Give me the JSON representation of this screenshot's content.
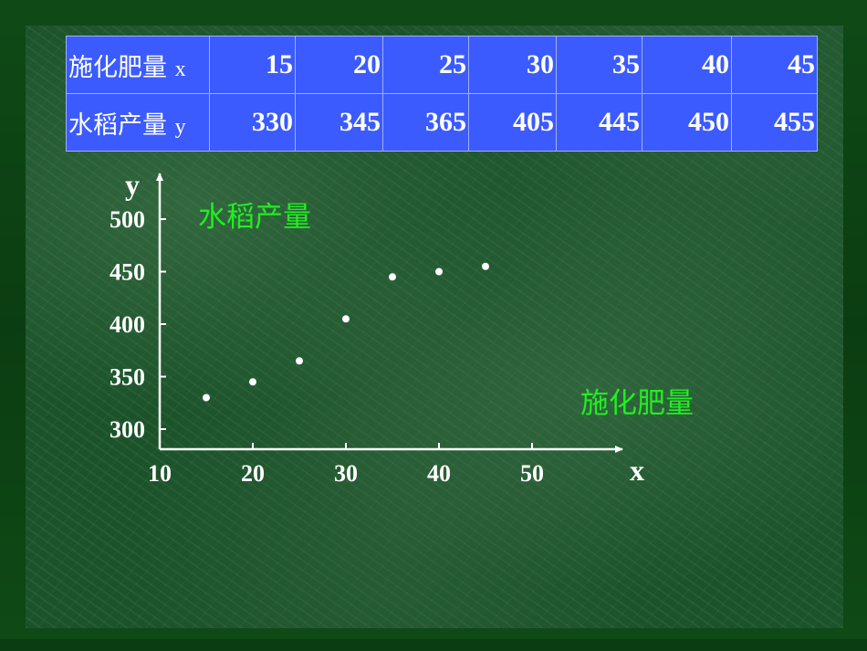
{
  "table": {
    "rows": [
      {
        "label": "施化肥量",
        "var": "x",
        "values": [
          "15",
          "20",
          "25",
          "30",
          "35",
          "40",
          "45"
        ]
      },
      {
        "label": "水稻产量",
        "var": "y",
        "values": [
          "330",
          "345",
          "365",
          "405",
          "445",
          "450",
          "455"
        ]
      }
    ]
  },
  "chart_data": {
    "type": "scatter",
    "xlabel": "x",
    "ylabel": "y",
    "annotations": [
      "水稻产量",
      "施化肥量"
    ],
    "xticks": [
      "10",
      "20",
      "30",
      "40",
      "50"
    ],
    "yticks": [
      "500",
      "450",
      "400",
      "350",
      "300"
    ],
    "xlim": [
      10,
      50
    ],
    "ylim": [
      300,
      500
    ],
    "grid": false,
    "x": [
      15,
      20,
      25,
      30,
      35,
      40,
      45
    ],
    "y": [
      330,
      345,
      365,
      405,
      445,
      450,
      455
    ],
    "colors": {
      "axis": "#ffffff",
      "points": "#ffffff",
      "annotation": "#22ee22",
      "table_bg": "#3b5bff"
    }
  }
}
